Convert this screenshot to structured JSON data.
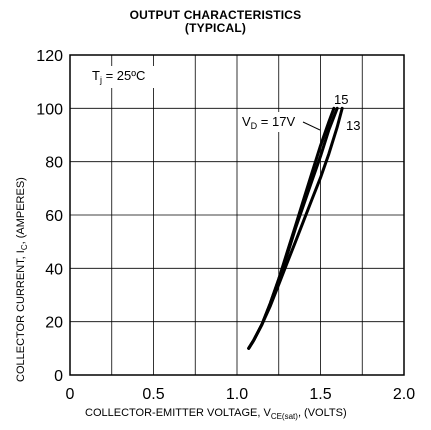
{
  "chart_data": {
    "type": "line",
    "title": "OUTPUT CHARACTERISTICS",
    "subtitle": "(TYPICAL)",
    "xlabel": "COLLECTOR-EMITTER VOLTAGE, V",
    "xlabel_sub": "CE(sat)",
    "xlabel_suffix": ", (VOLTS)",
    "ylabel": "COLLECTOR CURRENT, I",
    "ylabel_sub": "C",
    "ylabel_suffix": ", (AMPERES)",
    "xlim": [
      0,
      2.0
    ],
    "ylim": [
      0,
      120
    ],
    "grid": true,
    "x_ticks": [
      "0",
      "0.5",
      "1.0",
      "1.5",
      "2.0"
    ],
    "x_tick_values": [
      0,
      0.5,
      1.0,
      1.5,
      2.0
    ],
    "y_ticks": [
      "0",
      "20",
      "40",
      "60",
      "80",
      "100",
      "120"
    ],
    "y_tick_values": [
      0,
      20,
      40,
      60,
      80,
      100,
      120
    ],
    "annotations": {
      "tj": {
        "prefix": "T",
        "sub": "j",
        "text": " = 25ºC"
      },
      "vd17": {
        "prefix": "V",
        "sub": "D",
        "text": " = 17V"
      },
      "vd15": "15",
      "vd13": "13"
    },
    "series": [
      {
        "label": "17",
        "x": [
          1.07,
          1.1,
          1.15,
          1.2,
          1.25,
          1.3,
          1.35,
          1.4,
          1.45,
          1.5,
          1.55,
          1.58
        ],
        "y": [
          10,
          13,
          19,
          27,
          36,
          46,
          56,
          66,
          76,
          86,
          95,
          100
        ]
      },
      {
        "label": "15",
        "x": [
          1.07,
          1.1,
          1.15,
          1.2,
          1.25,
          1.3,
          1.35,
          1.4,
          1.45,
          1.5,
          1.55,
          1.6
        ],
        "y": [
          10,
          13,
          19,
          27,
          36,
          45,
          55,
          64,
          73,
          82,
          92,
          100
        ]
      },
      {
        "label": "13",
        "x": [
          1.07,
          1.1,
          1.15,
          1.2,
          1.25,
          1.3,
          1.35,
          1.4,
          1.45,
          1.5,
          1.55,
          1.6,
          1.63
        ],
        "y": [
          10,
          13,
          19,
          26,
          34,
          42,
          50,
          58,
          66,
          74,
          83,
          93,
          100
        ]
      }
    ]
  }
}
